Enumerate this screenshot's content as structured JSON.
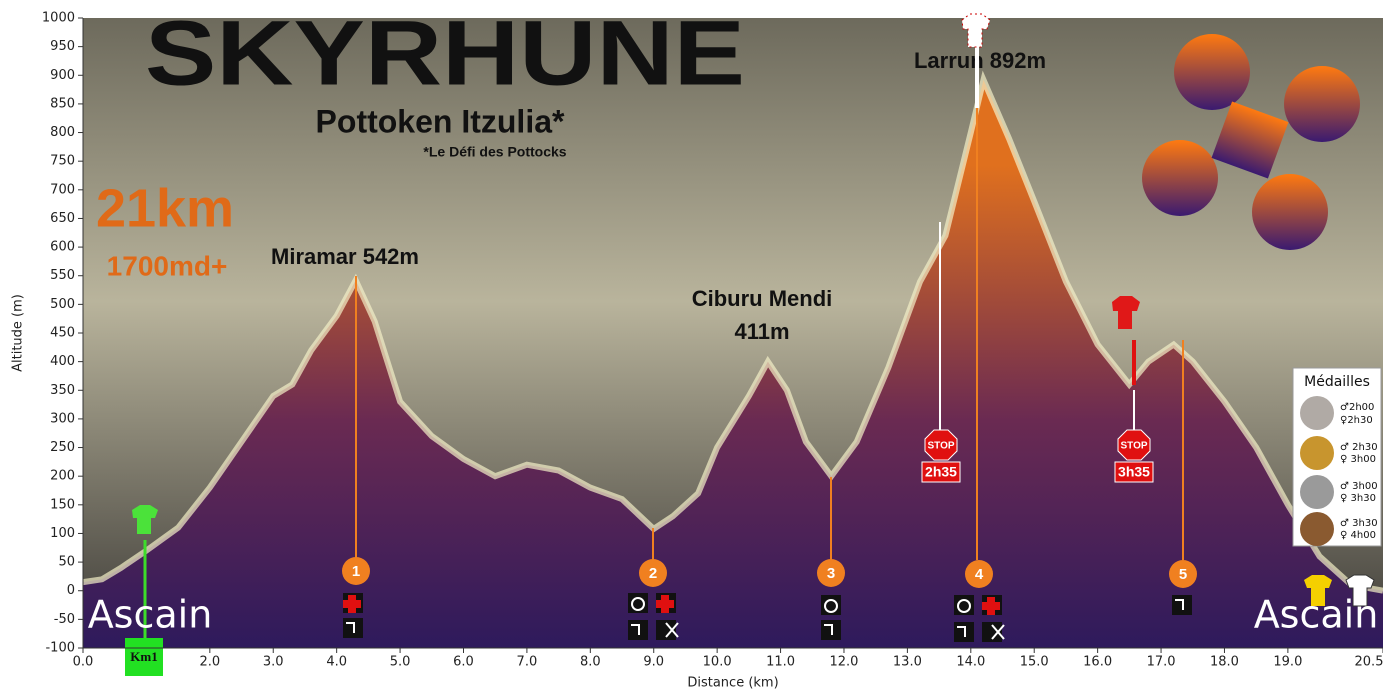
{
  "chart_data": {
    "type": "area",
    "title": "SKYRHUNE",
    "subtitle": "Pottoken Itzulia*",
    "note": "*Le Défi des Pottocks",
    "distance": "21km",
    "elevation_gain": "1700md+",
    "peak_labels": [
      "Miramar 542m",
      "Ciburu Mendi",
      "411m",
      "Larrun 892m"
    ],
    "start_label": "Ascain",
    "end_label": "Ascain",
    "km_marker": "Km1",
    "cutoffs": [
      {
        "sign": "STOP",
        "time": "2h35"
      },
      {
        "sign": "STOP",
        "time": "3h35"
      }
    ],
    "stations": [
      "1",
      "2",
      "3",
      "4",
      "5"
    ],
    "medals_title": "Médailles",
    "medals": [
      {
        "men": "♂2h00",
        "women": "♀2h30"
      },
      {
        "men": "♂ 2h30",
        "women": "♀ 3h00"
      },
      {
        "men": "♂ 3h00",
        "women": "♀ 3h30"
      },
      {
        "men": "♂ 3h30",
        "women": "♀ 4h00"
      }
    ],
    "xlabel": "Distance  (km)",
    "ylabel": "Altitude (m)",
    "x": [
      0,
      0.3,
      0.6,
      1.0,
      1.5,
      2.0,
      2.5,
      3.0,
      3.3,
      3.6,
      4.0,
      4.3,
      4.6,
      5.0,
      5.5,
      6.0,
      6.5,
      7.0,
      7.5,
      8.0,
      8.5,
      9.0,
      9.3,
      9.7,
      10.0,
      10.5,
      10.8,
      11.1,
      11.4,
      11.8,
      12.2,
      12.7,
      13.2,
      13.6,
      14.0,
      14.2,
      14.6,
      15.0,
      15.5,
      16.0,
      16.5,
      16.8,
      17.2,
      17.5,
      18.0,
      18.5,
      19.0,
      19.5,
      20.0,
      20.5
    ],
    "values": [
      15,
      20,
      40,
      70,
      110,
      180,
      260,
      340,
      360,
      420,
      480,
      542,
      470,
      330,
      270,
      230,
      200,
      220,
      210,
      180,
      160,
      108,
      130,
      170,
      250,
      340,
      400,
      350,
      260,
      200,
      260,
      390,
      540,
      620,
      800,
      892,
      790,
      680,
      540,
      430,
      360,
      400,
      430,
      400,
      330,
      250,
      150,
      60,
      10,
      0
    ],
    "color": "#e0701e",
    "xlim": [
      0,
      20.5
    ],
    "ylim": [
      -100,
      1000
    ],
    "xticks": [
      {
        "value": 0,
        "label": "0.0"
      },
      {
        "value": 2,
        "label": "2.0"
      },
      {
        "value": 3,
        "label": "3.0"
      },
      {
        "value": 4,
        "label": "4.0"
      },
      {
        "value": 5,
        "label": "5.0"
      },
      {
        "value": 6,
        "label": "6.0"
      },
      {
        "value": 7,
        "label": "7.0"
      },
      {
        "value": 8,
        "label": "8.0"
      },
      {
        "value": 9,
        "label": "9.0"
      },
      {
        "value": 10,
        "label": "10.0"
      },
      {
        "value": 11,
        "label": "11.0"
      },
      {
        "value": 12,
        "label": "12.0"
      },
      {
        "value": 13,
        "label": "13.0"
      },
      {
        "value": 14,
        "label": "14.0"
      },
      {
        "value": 15,
        "label": "15.0"
      },
      {
        "value": 16,
        "label": "16.0"
      },
      {
        "value": 17,
        "label": "17.0"
      },
      {
        "value": 18,
        "label": "18.0"
      },
      {
        "value": 19,
        "label": "19.0"
      },
      20.5
    ],
    "yticks": [
      -100,
      -50,
      0,
      50,
      100,
      150,
      200,
      250,
      300,
      350,
      400,
      450,
      500,
      550,
      600,
      650,
      700,
      750,
      800,
      850,
      900,
      950,
      1000
    ]
  }
}
